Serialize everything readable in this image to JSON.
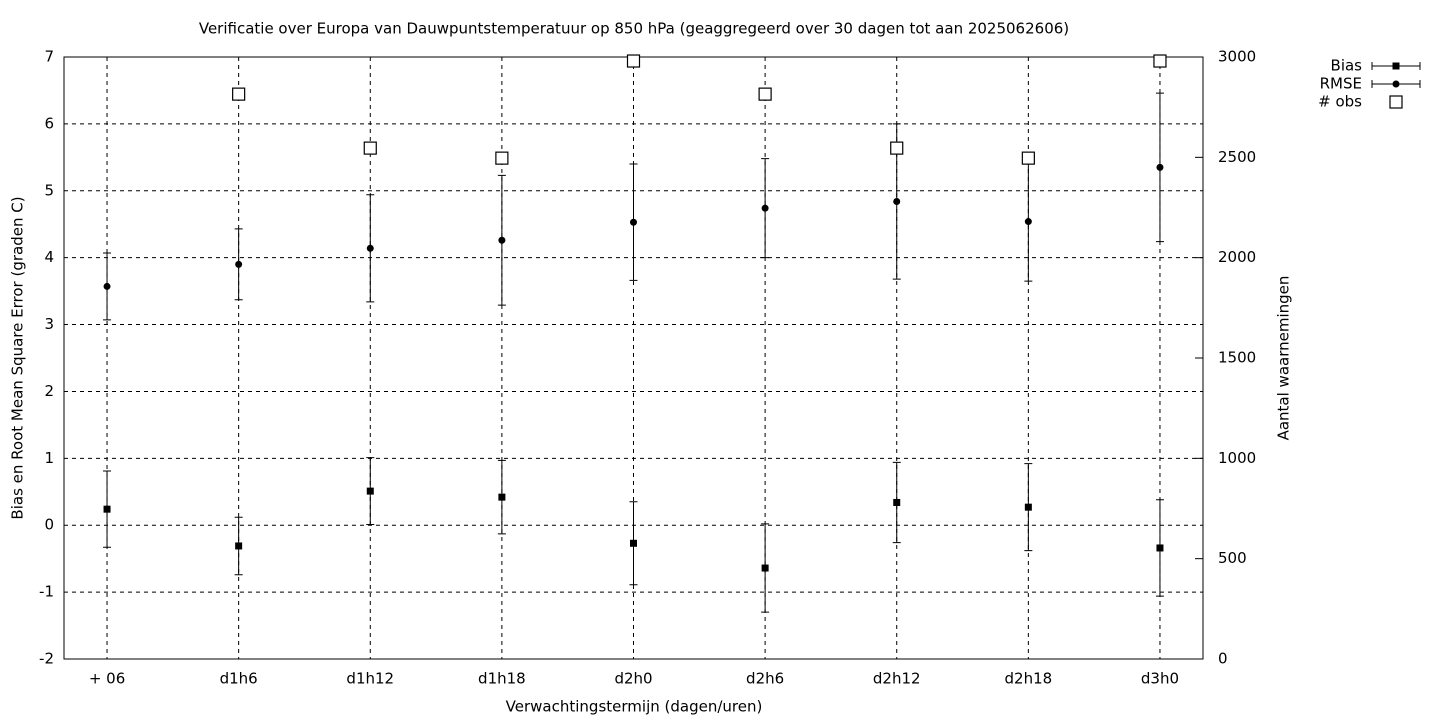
{
  "chart_data": {
    "type": "errorbar",
    "title": "Verificatie over Europa van Dauwpuntstemperatuur op 850 hPa (geaggregeerd over 30 dagen tot aan 2025062606)",
    "xlabel": "Verwachtingstermijn (dagen/uren)",
    "ylabel": "Bias en Root Mean Square Error (graden C)",
    "y2label": "Aantal waarnemingen",
    "categories": [
      "+ 06",
      "d1h6",
      "d1h12",
      "d1h18",
      "d2h0",
      "d2h6",
      "d2h12",
      "d2h18",
      "d3h0"
    ],
    "series": [
      {
        "name": "Bias",
        "color": "#000000",
        "marker": "square",
        "values": [
          0.24,
          -0.31,
          0.51,
          0.42,
          -0.27,
          -0.64,
          0.34,
          0.27,
          -0.34
        ],
        "errors": [
          0.57,
          0.43,
          0.5,
          0.55,
          0.62,
          0.66,
          0.6,
          0.65,
          0.72
        ]
      },
      {
        "name": "RMSE",
        "color": "#000000",
        "marker": "circle",
        "values": [
          3.57,
          3.9,
          4.14,
          4.26,
          4.53,
          4.74,
          4.84,
          4.54,
          5.35
        ],
        "errors": [
          0.5,
          0.53,
          0.8,
          0.97,
          0.87,
          0.74,
          1.16,
          0.89,
          1.11
        ]
      },
      {
        "name": "# obs",
        "color": "#000000",
        "marker": "open-square",
        "axis": "y2",
        "values": [
          null,
          2815,
          2546,
          2496,
          2980,
          2815,
          2546,
          2496,
          2980
        ]
      }
    ],
    "ylim": [
      -2,
      7
    ],
    "yticks": [
      -2,
      -1,
      0,
      1,
      2,
      3,
      4,
      5,
      6,
      7
    ],
    "y2lim": [
      0,
      3000
    ],
    "y2ticks": [
      0,
      500,
      1000,
      1500,
      2000,
      2500,
      3000
    ],
    "grid": true,
    "legend": "top-right"
  }
}
